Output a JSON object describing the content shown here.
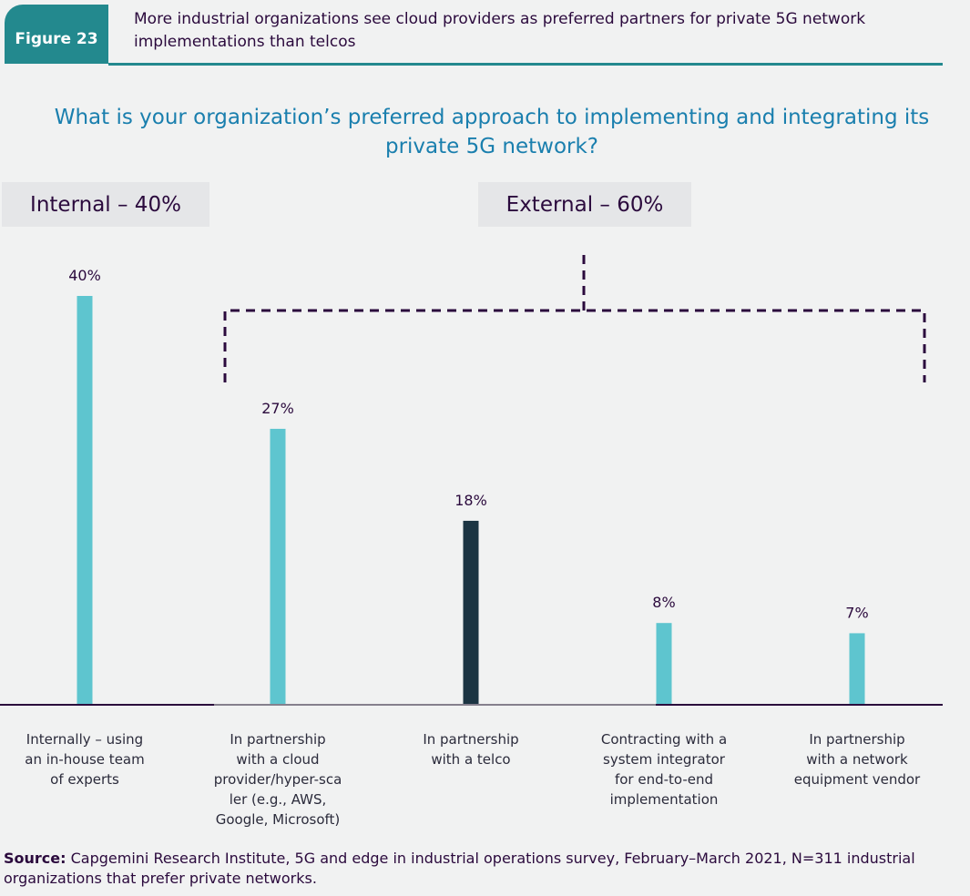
{
  "figure": {
    "tab_label": "Figure 23",
    "title": "More industrial organizations see cloud providers as preferred partners for private 5G network implementations than telcos",
    "accent_color": "#23898e"
  },
  "chart_data": {
    "type": "bar",
    "title": "What is your organization’s preferred approach to implementing and integrating its private 5G network?",
    "categories": [
      "Internally – using an in-house team of experts",
      "In partnership with a cloud provider/hyper-scaler (e.g., AWS, Google, Microsoft)",
      "In partnership with a telco",
      "Contracting with a system integrator for end-to-end implementation",
      "In partnership with a network equipment vendor"
    ],
    "category_lines": [
      [
        "Internally – using",
        "an in-house team",
        "of experts"
      ],
      [
        "In partnership",
        "with a cloud",
        "provider/hyper-sca",
        "ler (e.g., AWS,",
        "Google, Microsoft)"
      ],
      [
        "In partnership",
        "with a telco"
      ],
      [
        "Contracting with a",
        "system integrator",
        "for end-to-end",
        "implementation"
      ],
      [
        "In partnership",
        "with a network",
        "equipment vendor"
      ]
    ],
    "values": [
      40,
      27,
      18,
      8,
      7
    ],
    "value_labels": [
      "40%",
      "27%",
      "18%",
      "8%",
      "7%"
    ],
    "unit": "%",
    "bar_colors": [
      "#5ec5cf",
      "#5ec5cf",
      "#1b3442",
      "#5ec5cf",
      "#5ec5cf"
    ],
    "highlighted_category": "In partnership with a telco",
    "ylim": [
      0,
      40
    ],
    "grid": false,
    "xlabel": "",
    "ylabel": "",
    "groups": [
      {
        "name": "Internal",
        "label": "Internal – 40%",
        "value": 40,
        "members": [
          0
        ]
      },
      {
        "name": "External",
        "label": "External – 60%",
        "value": 60,
        "members": [
          1,
          2,
          3,
          4
        ]
      }
    ]
  },
  "source": {
    "prefix": "Source:",
    "text": " Capgemini Research Institute, 5G and edge in industrial operations survey, February–March 2021, N=311 industrial organizations that prefer private networks."
  }
}
